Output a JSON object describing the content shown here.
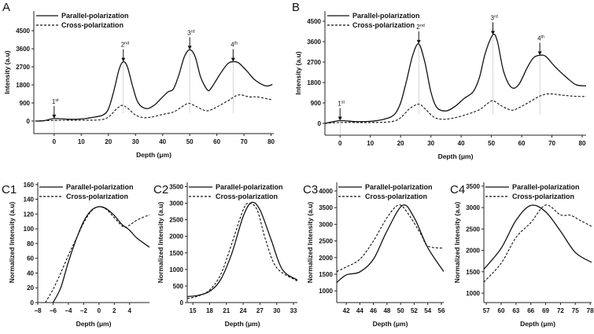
{
  "chart_data": [
    {
      "panel": "A",
      "type": "line",
      "xlabel": "Depth (μm)",
      "ylabel": "Intensity (a.u)",
      "xlim": [
        -7.5,
        81
      ],
      "ylim": [
        -626,
        5478
      ],
      "xticks": [
        0,
        10,
        20,
        30,
        40,
        50,
        60,
        70,
        80
      ],
      "yticks": [
        0,
        900,
        1800,
        2700,
        3600,
        4500
      ],
      "legend": {
        "position": "top-left"
      },
      "annotations": [
        {
          "label": "1",
          "sup": "st",
          "x": 0,
          "y": 120
        },
        {
          "label": "2",
          "sup": "nd",
          "x": 25.5,
          "y": 2950
        },
        {
          "label": "3",
          "sup": "rd",
          "x": 50,
          "y": 3550
        },
        {
          "label": "4",
          "sup": "th",
          "x": 66,
          "y": 2950
        }
      ],
      "series": [
        {
          "name": "Parallel-polarization",
          "style": "solid",
          "points": [
            [
              -7,
              0
            ],
            [
              -4,
              10
            ],
            [
              0,
              120
            ],
            [
              5,
              90
            ],
            [
              10,
              100
            ],
            [
              15,
              200
            ],
            [
              18,
              300
            ],
            [
              20,
              600
            ],
            [
              22,
              1500
            ],
            [
              24,
              2600
            ],
            [
              25.5,
              2950
            ],
            [
              27,
              2700
            ],
            [
              29,
              1700
            ],
            [
              31,
              900
            ],
            [
              34,
              620
            ],
            [
              37,
              800
            ],
            [
              40,
              1200
            ],
            [
              42,
              1450
            ],
            [
              44,
              1600
            ],
            [
              46,
              2300
            ],
            [
              48,
              3200
            ],
            [
              50,
              3550
            ],
            [
              52,
              3200
            ],
            [
              54,
              2200
            ],
            [
              56.5,
              1550
            ],
            [
              58,
              1650
            ],
            [
              61,
              2300
            ],
            [
              64,
              2850
            ],
            [
              66,
              2950
            ],
            [
              68,
              2900
            ],
            [
              71,
              2500
            ],
            [
              74,
              2050
            ],
            [
              78,
              1750
            ],
            [
              80.5,
              1820
            ]
          ]
        },
        {
          "name": "Cross-polarization",
          "style": "dashed",
          "points": [
            [
              -7,
              0
            ],
            [
              0,
              30
            ],
            [
              10,
              40
            ],
            [
              17,
              60
            ],
            [
              20,
              200
            ],
            [
              23,
              600
            ],
            [
              25,
              780
            ],
            [
              27,
              650
            ],
            [
              30,
              300
            ],
            [
              33,
              170
            ],
            [
              36,
              200
            ],
            [
              40,
              330
            ],
            [
              44,
              450
            ],
            [
              47,
              700
            ],
            [
              49.5,
              880
            ],
            [
              52,
              750
            ],
            [
              55,
              550
            ],
            [
              57,
              520
            ],
            [
              60,
              700
            ],
            [
              64,
              1000
            ],
            [
              68,
              1300
            ],
            [
              72,
              1200
            ],
            [
              75,
              1200
            ],
            [
              80.5,
              1050
            ]
          ]
        }
      ]
    },
    {
      "panel": "B",
      "type": "line",
      "xlabel": "Depth (μm)",
      "ylabel": "Intensity (a.u)",
      "xlim": [
        -5,
        81.3
      ],
      "ylim": [
        -519,
        4950
      ],
      "xticks": [
        0,
        10,
        20,
        30,
        40,
        50,
        60,
        70,
        80
      ],
      "yticks": [
        0,
        900,
        1800,
        2700,
        3600,
        4500
      ],
      "legend": {
        "position": "top-left"
      },
      "annotations": [
        {
          "label": "1",
          "sup": "st",
          "x": 0,
          "y": 120
        },
        {
          "label": "2",
          "sup": "nd",
          "x": 26,
          "y": 3500
        },
        {
          "label": "3",
          "sup": "rd",
          "x": 50.5,
          "y": 3900
        },
        {
          "label": "4",
          "sup": "th",
          "x": 66,
          "y": 3000
        }
      ],
      "series": [
        {
          "name": "Parallel-polarization",
          "style": "solid",
          "points": [
            [
              -5,
              0
            ],
            [
              0,
              120
            ],
            [
              5,
              80
            ],
            [
              10,
              90
            ],
            [
              15,
              200
            ],
            [
              18,
              400
            ],
            [
              20,
              900
            ],
            [
              22,
              1900
            ],
            [
              24,
              3000
            ],
            [
              26,
              3500
            ],
            [
              28,
              2700
            ],
            [
              30,
              1400
            ],
            [
              32,
              700
            ],
            [
              35,
              550
            ],
            [
              38,
              750
            ],
            [
              41,
              1100
            ],
            [
              44,
              1400
            ],
            [
              46,
              2000
            ],
            [
              48,
              3100
            ],
            [
              50.5,
              3900
            ],
            [
              52,
              3600
            ],
            [
              54,
              2300
            ],
            [
              56.5,
              1600
            ],
            [
              59,
              1700
            ],
            [
              62,
              2500
            ],
            [
              64,
              2900
            ],
            [
              66,
              3000
            ],
            [
              68,
              2950
            ],
            [
              71,
              2500
            ],
            [
              75,
              2000
            ],
            [
              78,
              1700
            ],
            [
              81.3,
              1650
            ]
          ]
        },
        {
          "name": "Cross-polarization",
          "style": "dashed",
          "points": [
            [
              -5,
              0
            ],
            [
              0,
              40
            ],
            [
              10,
              40
            ],
            [
              17,
              80
            ],
            [
              20,
              250
            ],
            [
              23,
              650
            ],
            [
              26,
              850
            ],
            [
              28,
              650
            ],
            [
              31,
              280
            ],
            [
              34,
              180
            ],
            [
              38,
              250
            ],
            [
              42,
              400
            ],
            [
              46,
              600
            ],
            [
              48.5,
              850
            ],
            [
              50.5,
              1000
            ],
            [
              53,
              800
            ],
            [
              56,
              600
            ],
            [
              58,
              620
            ],
            [
              62,
              900
            ],
            [
              66,
              1200
            ],
            [
              69,
              1300
            ],
            [
              73,
              1250
            ],
            [
              77,
              1200
            ],
            [
              81.3,
              1180
            ]
          ]
        }
      ]
    },
    {
      "panel": "C1",
      "type": "line",
      "xlabel": "Depth (μm)",
      "ylabel": "Normalized Intensity (a.u)",
      "xlim": [
        -8,
        6.6
      ],
      "ylim": [
        0,
        163
      ],
      "xticks": [
        -8,
        -6,
        -4,
        -2,
        0,
        2,
        4
      ],
      "yticks": [
        0,
        20,
        40,
        60,
        80,
        100,
        120,
        140,
        160
      ],
      "legend": {
        "position": "top-right"
      },
      "series": [
        {
          "name": "Parallel-polarization",
          "style": "solid",
          "points": [
            [
              -6,
              0
            ],
            [
              -5,
              20
            ],
            [
              -4,
              55
            ],
            [
              -3,
              85
            ],
            [
              -2,
              110
            ],
            [
              -1,
              125
            ],
            [
              0,
              130
            ],
            [
              1,
              127
            ],
            [
              2,
              118
            ],
            [
              3,
              106
            ],
            [
              4,
              98
            ],
            [
              5,
              87
            ],
            [
              6.6,
              75
            ]
          ]
        },
        {
          "name": "Cross-polarization",
          "style": "dashed",
          "points": [
            [
              -7,
              0
            ],
            [
              -6,
              18
            ],
            [
              -5,
              40
            ],
            [
              -4,
              64
            ],
            [
              -3,
              86
            ],
            [
              -2,
              108
            ],
            [
              -1,
              124
            ],
            [
              0,
              130
            ],
            [
              1,
              126
            ],
            [
              2,
              115
            ],
            [
              3,
              104
            ],
            [
              3.5,
              102
            ],
            [
              4,
              105
            ],
            [
              5,
              112
            ],
            [
              6.6,
              119
            ]
          ]
        }
      ]
    },
    {
      "panel": "C2",
      "type": "line",
      "xlabel": "Depth (μm)",
      "ylabel": "Normalized Intensity (a.u)",
      "xlim": [
        14,
        33.7
      ],
      "ylim": [
        0,
        3630
      ],
      "xticks": [
        15,
        18,
        21,
        24,
        27,
        30,
        33
      ],
      "yticks": [
        0,
        500,
        1000,
        1500,
        2000,
        2500,
        3000,
        3500
      ],
      "legend": {
        "position": "top-right"
      },
      "series": [
        {
          "name": "Parallel-polarization",
          "style": "solid",
          "points": [
            [
              14,
              180
            ],
            [
              16,
              220
            ],
            [
              18,
              340
            ],
            [
              20,
              700
            ],
            [
              22,
              1500
            ],
            [
              24,
              2600
            ],
            [
              25.5,
              3020
            ],
            [
              27,
              2800
            ],
            [
              29,
              1900
            ],
            [
              31,
              1000
            ],
            [
              33.7,
              680
            ]
          ]
        },
        {
          "name": "Cross-polarization",
          "style": "dashed",
          "points": [
            [
              14,
              120
            ],
            [
              16,
              200
            ],
            [
              18,
              380
            ],
            [
              20,
              850
            ],
            [
              22,
              1800
            ],
            [
              24,
              2800
            ],
            [
              25,
              3000
            ],
            [
              26.5,
              2800
            ],
            [
              28,
              1900
            ],
            [
              30,
              1050
            ],
            [
              33.7,
              650
            ]
          ]
        }
      ]
    },
    {
      "panel": "C3",
      "type": "line",
      "xlabel": "Depth (μm)",
      "ylabel": "Normalized Intensity (a.u)",
      "xlim": [
        40.6,
        56.35
      ],
      "ylim": [
        650,
        4260
      ],
      "xticks": [
        42,
        44,
        46,
        48,
        50,
        52,
        54,
        56
      ],
      "yticks": [
        1000,
        1500,
        2000,
        2500,
        3000,
        3500,
        4000
      ],
      "legend": {
        "position": "top-right"
      },
      "series": [
        {
          "name": "Parallel-polarization",
          "style": "solid",
          "points": [
            [
              40.6,
              1250
            ],
            [
              42,
              1480
            ],
            [
              44,
              1570
            ],
            [
              46,
              1950
            ],
            [
              48,
              2800
            ],
            [
              50.3,
              3570
            ],
            [
              52,
              3200
            ],
            [
              54,
              2300
            ],
            [
              56.35,
              1580
            ]
          ]
        },
        {
          "name": "Cross-polarization",
          "style": "dashed",
          "points": [
            [
              40.6,
              1580
            ],
            [
              42,
              1720
            ],
            [
              44,
              1950
            ],
            [
              46,
              2500
            ],
            [
              48,
              3200
            ],
            [
              49.7,
              3580
            ],
            [
              51,
              3350
            ],
            [
              53,
              2700
            ],
            [
              54,
              2350
            ],
            [
              56.35,
              2280
            ]
          ]
        }
      ]
    },
    {
      "panel": "C4",
      "type": "line",
      "xlabel": "Depth (μm)",
      "ylabel": "Normalized Intensity (a.u)",
      "xlim": [
        56.5,
        78.3
      ],
      "ylim": [
        780,
        3590
      ],
      "xticks": [
        57,
        60,
        63,
        66,
        69,
        72,
        75,
        78
      ],
      "yticks": [
        1000,
        1500,
        2000,
        2500,
        3000,
        3500
      ],
      "legend": {
        "position": "top-right"
      },
      "series": [
        {
          "name": "Parallel-polarization",
          "style": "solid",
          "points": [
            [
              56.5,
              1560
            ],
            [
              60,
              2050
            ],
            [
              63,
              2700
            ],
            [
              66,
              3050
            ],
            [
              69,
              2900
            ],
            [
              72,
              2450
            ],
            [
              75,
              1950
            ],
            [
              78.3,
              1720
            ]
          ]
        },
        {
          "name": "Cross-polarization",
          "style": "dashed",
          "points": [
            [
              56.5,
              1260
            ],
            [
              60,
              1700
            ],
            [
              63,
              2300
            ],
            [
              66,
              2650
            ],
            [
              69,
              3060
            ],
            [
              72,
              2830
            ],
            [
              74,
              2820
            ],
            [
              76,
              2700
            ],
            [
              78.3,
              2560
            ]
          ]
        }
      ]
    }
  ]
}
